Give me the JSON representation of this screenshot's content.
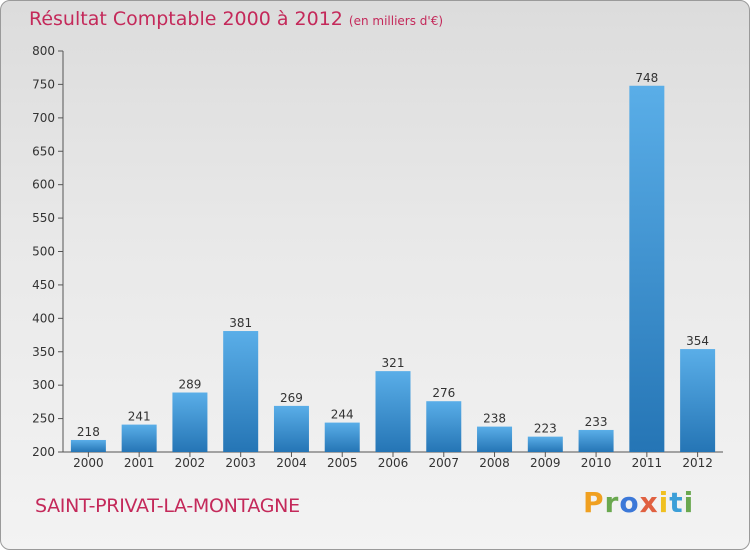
{
  "header": {
    "title": "Résultat Comptable 2000 à 2012",
    "unit": "(en milliers d'€)"
  },
  "footer": {
    "commune": "SAINT-PRIVAT-LA-MONTAGNE",
    "brand": "Proxiti"
  },
  "colors": {
    "accent": "#c4295a",
    "bar_light": "#5aaee8",
    "bar_dark": "#2575b5"
  },
  "chart_data": {
    "type": "bar",
    "title": "Résultat Comptable 2000 à 2012",
    "subtitle": "(en milliers d'€)",
    "xlabel": "",
    "ylabel": "",
    "categories": [
      "2000",
      "2001",
      "2002",
      "2003",
      "2004",
      "2005",
      "2006",
      "2007",
      "2008",
      "2009",
      "2010",
      "2011",
      "2012"
    ],
    "values": [
      218,
      241,
      289,
      381,
      269,
      244,
      321,
      276,
      238,
      223,
      233,
      748,
      354
    ],
    "ylim": [
      200,
      800
    ],
    "yticks": [
      200,
      250,
      300,
      350,
      400,
      450,
      500,
      550,
      600,
      650,
      700,
      750,
      800
    ],
    "grid": false
  }
}
